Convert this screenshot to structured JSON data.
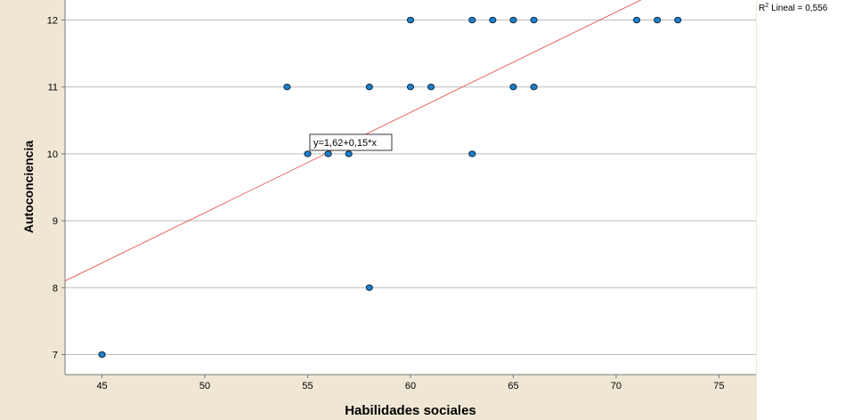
{
  "chart_data": {
    "type": "scatter",
    "xlabel": "Habilidades sociales",
    "ylabel": "Autoconciencia",
    "xlim": [
      43.2,
      76.8
    ],
    "ylim": [
      6.7,
      12.3
    ],
    "x_ticks": [
      45,
      50,
      55,
      60,
      65,
      70,
      75
    ],
    "y_ticks": [
      7,
      8,
      9,
      10,
      11,
      12
    ],
    "grid": "horizontal",
    "points": [
      {
        "x": 45,
        "y": 7
      },
      {
        "x": 58,
        "y": 8
      },
      {
        "x": 55,
        "y": 10
      },
      {
        "x": 56,
        "y": 10
      },
      {
        "x": 57,
        "y": 10
      },
      {
        "x": 63,
        "y": 10
      },
      {
        "x": 54,
        "y": 11
      },
      {
        "x": 58,
        "y": 11
      },
      {
        "x": 60,
        "y": 11
      },
      {
        "x": 61,
        "y": 11
      },
      {
        "x": 65,
        "y": 11
      },
      {
        "x": 66,
        "y": 11
      },
      {
        "x": 60,
        "y": 12
      },
      {
        "x": 63,
        "y": 12
      },
      {
        "x": 64,
        "y": 12
      },
      {
        "x": 65,
        "y": 12
      },
      {
        "x": 66,
        "y": 12
      },
      {
        "x": 71,
        "y": 12
      },
      {
        "x": 72,
        "y": 12
      },
      {
        "x": 73,
        "y": 12
      }
    ],
    "fit_line": {
      "intercept": 1.62,
      "slope": 0.15,
      "equation_label": "y=1,62+0,15*x",
      "color": "#e8665f"
    },
    "r2_label": "Lineal = 0,556",
    "r2_prefix": "R",
    "r2_superscript": "2",
    "colors": {
      "point_fill": "#1f7fc9",
      "point_stroke": "#0b2a45",
      "frame_background": "#efe7d4",
      "plot_background": "#ffffff",
      "grid": "#bdbdbd"
    }
  }
}
